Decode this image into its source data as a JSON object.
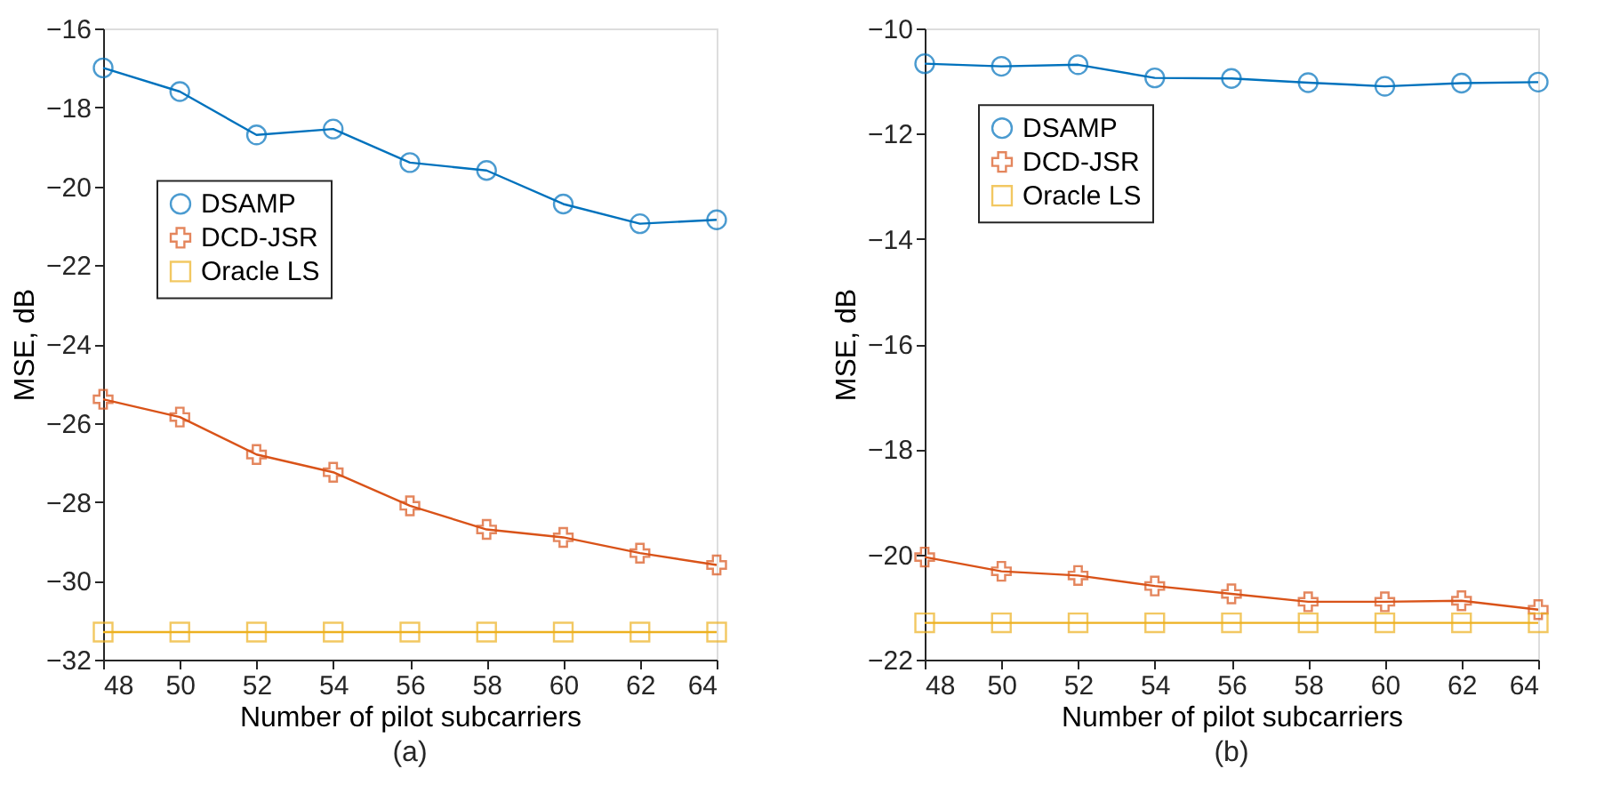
{
  "chart_data": [
    {
      "type": "line",
      "xlabel": "Number of pilot subcarriers",
      "ylabel": "MSE, dB",
      "annotations": [
        "(a)"
      ],
      "x": [
        48,
        50,
        52,
        54,
        56,
        58,
        60,
        62,
        64
      ],
      "xlim": [
        48,
        64
      ],
      "xticks": [
        48,
        50,
        52,
        54,
        56,
        58,
        60,
        62,
        64
      ],
      "ylim": [
        -32,
        -16
      ],
      "yticks": [
        -32,
        -30,
        -28,
        -26,
        -24,
        -22,
        -20,
        -18,
        -16
      ],
      "grid": false,
      "legend": "left",
      "series": [
        {
          "name": "DSAMP",
          "color": "#0072bd",
          "marker": "circle",
          "values": [
            -17.0,
            -17.6,
            -18.7,
            -18.55,
            -19.4,
            -19.6,
            -20.45,
            -20.95,
            -20.85
          ]
        },
        {
          "name": " DCD-JSR",
          "color": "#d95319",
          "marker": "cross",
          "values": [
            -25.4,
            -25.85,
            -26.8,
            -27.25,
            -28.1,
            -28.7,
            -28.9,
            -29.3,
            -29.6
          ]
        },
        {
          "name": "Oracle LS",
          "color": "#edb120",
          "marker": "square",
          "values": [
            -31.3,
            -31.3,
            -31.3,
            -31.3,
            -31.3,
            -31.3,
            -31.3,
            -31.3,
            -31.3
          ]
        }
      ]
    },
    {
      "type": "line",
      "xlabel": "Number of pilot subcarriers",
      "ylabel": "MSE, dB",
      "annotations": [
        "(b)"
      ],
      "x": [
        48,
        50,
        52,
        54,
        56,
        58,
        60,
        62,
        64
      ],
      "xlim": [
        48,
        64
      ],
      "xticks": [
        48,
        50,
        52,
        54,
        56,
        58,
        60,
        62,
        64
      ],
      "ylim": [
        -22,
        -10
      ],
      "yticks": [
        -22,
        -20,
        -18,
        -16,
        -14,
        -12,
        -10
      ],
      "grid": false,
      "legend": "top left",
      "series": [
        {
          "name": "DSAMP",
          "color": "#0072bd",
          "marker": "circle",
          "values": [
            -10.67,
            -10.72,
            -10.69,
            -10.94,
            -10.95,
            -11.03,
            -11.1,
            -11.04,
            -11.02
          ]
        },
        {
          "name": "DCD-JSR",
          "color": "#d95319",
          "marker": "cross",
          "values": [
            -20.05,
            -20.32,
            -20.4,
            -20.6,
            -20.75,
            -20.9,
            -20.9,
            -20.88,
            -21.05
          ]
        },
        {
          "name": "Oracle LS",
          "color": "#edb120",
          "marker": "square",
          "values": [
            -21.3,
            -21.3,
            -21.3,
            -21.3,
            -21.3,
            -21.3,
            -21.3,
            -21.3,
            -21.3
          ]
        }
      ]
    }
  ]
}
